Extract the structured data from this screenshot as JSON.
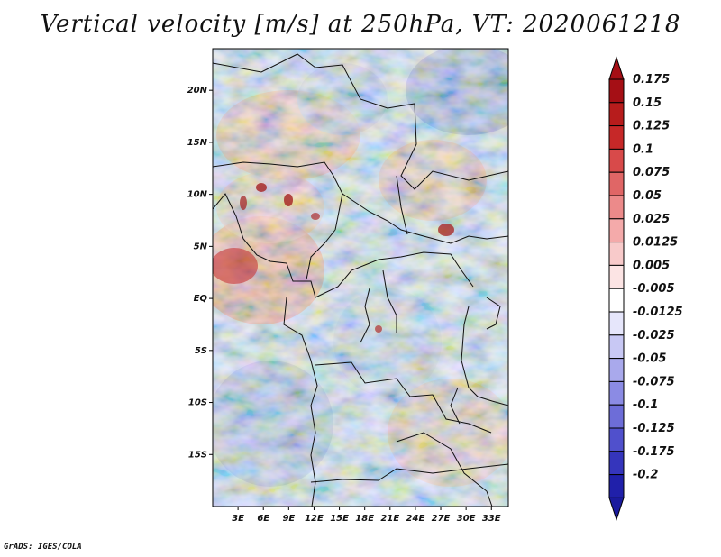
{
  "title": "Vertical velocity [m/s] at 250hPa, VT: 2020061218",
  "credit": "GrADS: IGES/COLA",
  "map": {
    "lat_labels": [
      "20N",
      "15N",
      "10N",
      "5N",
      "EQ",
      "5S",
      "10S",
      "15S"
    ],
    "lon_labels": [
      "3E",
      "6E",
      "9E",
      "12E",
      "15E",
      "18E",
      "21E",
      "24E",
      "27E",
      "30E",
      "33E"
    ],
    "lon_range": [
      0,
      35
    ],
    "lat_range": [
      -20,
      24
    ]
  },
  "colorbar": {
    "levels": [
      {
        "label": "0.175",
        "color": "#a50f15"
      },
      {
        "label": "0.15",
        "color": "#b71c1c"
      },
      {
        "label": "0.125",
        "color": "#c62828"
      },
      {
        "label": "0.1",
        "color": "#d84a4a"
      },
      {
        "label": "0.075",
        "color": "#e06666"
      },
      {
        "label": "0.05",
        "color": "#ec8a8a"
      },
      {
        "label": "0.025",
        "color": "#f4aaaa"
      },
      {
        "label": "0.0125",
        "color": "#f8caca"
      },
      {
        "label": "0.005",
        "color": "#fce4e4"
      },
      {
        "label": "-0.005",
        "color": "#ffffff"
      },
      {
        "label": "-0.0125",
        "color": "#e6e6fb"
      },
      {
        "label": "-0.025",
        "color": "#c8c8f4"
      },
      {
        "label": "-0.05",
        "color": "#a9a9ec"
      },
      {
        "label": "-0.075",
        "color": "#8b8be4"
      },
      {
        "label": "-0.1",
        "color": "#6d6dd8"
      },
      {
        "label": "-0.125",
        "color": "#5050cc"
      },
      {
        "label": "-0.175",
        "color": "#3535bc"
      },
      {
        "label": "-0.2",
        "color": "#2020aa"
      }
    ],
    "top_color": "#a50f15",
    "bottom_color": "#1a1a9e"
  }
}
